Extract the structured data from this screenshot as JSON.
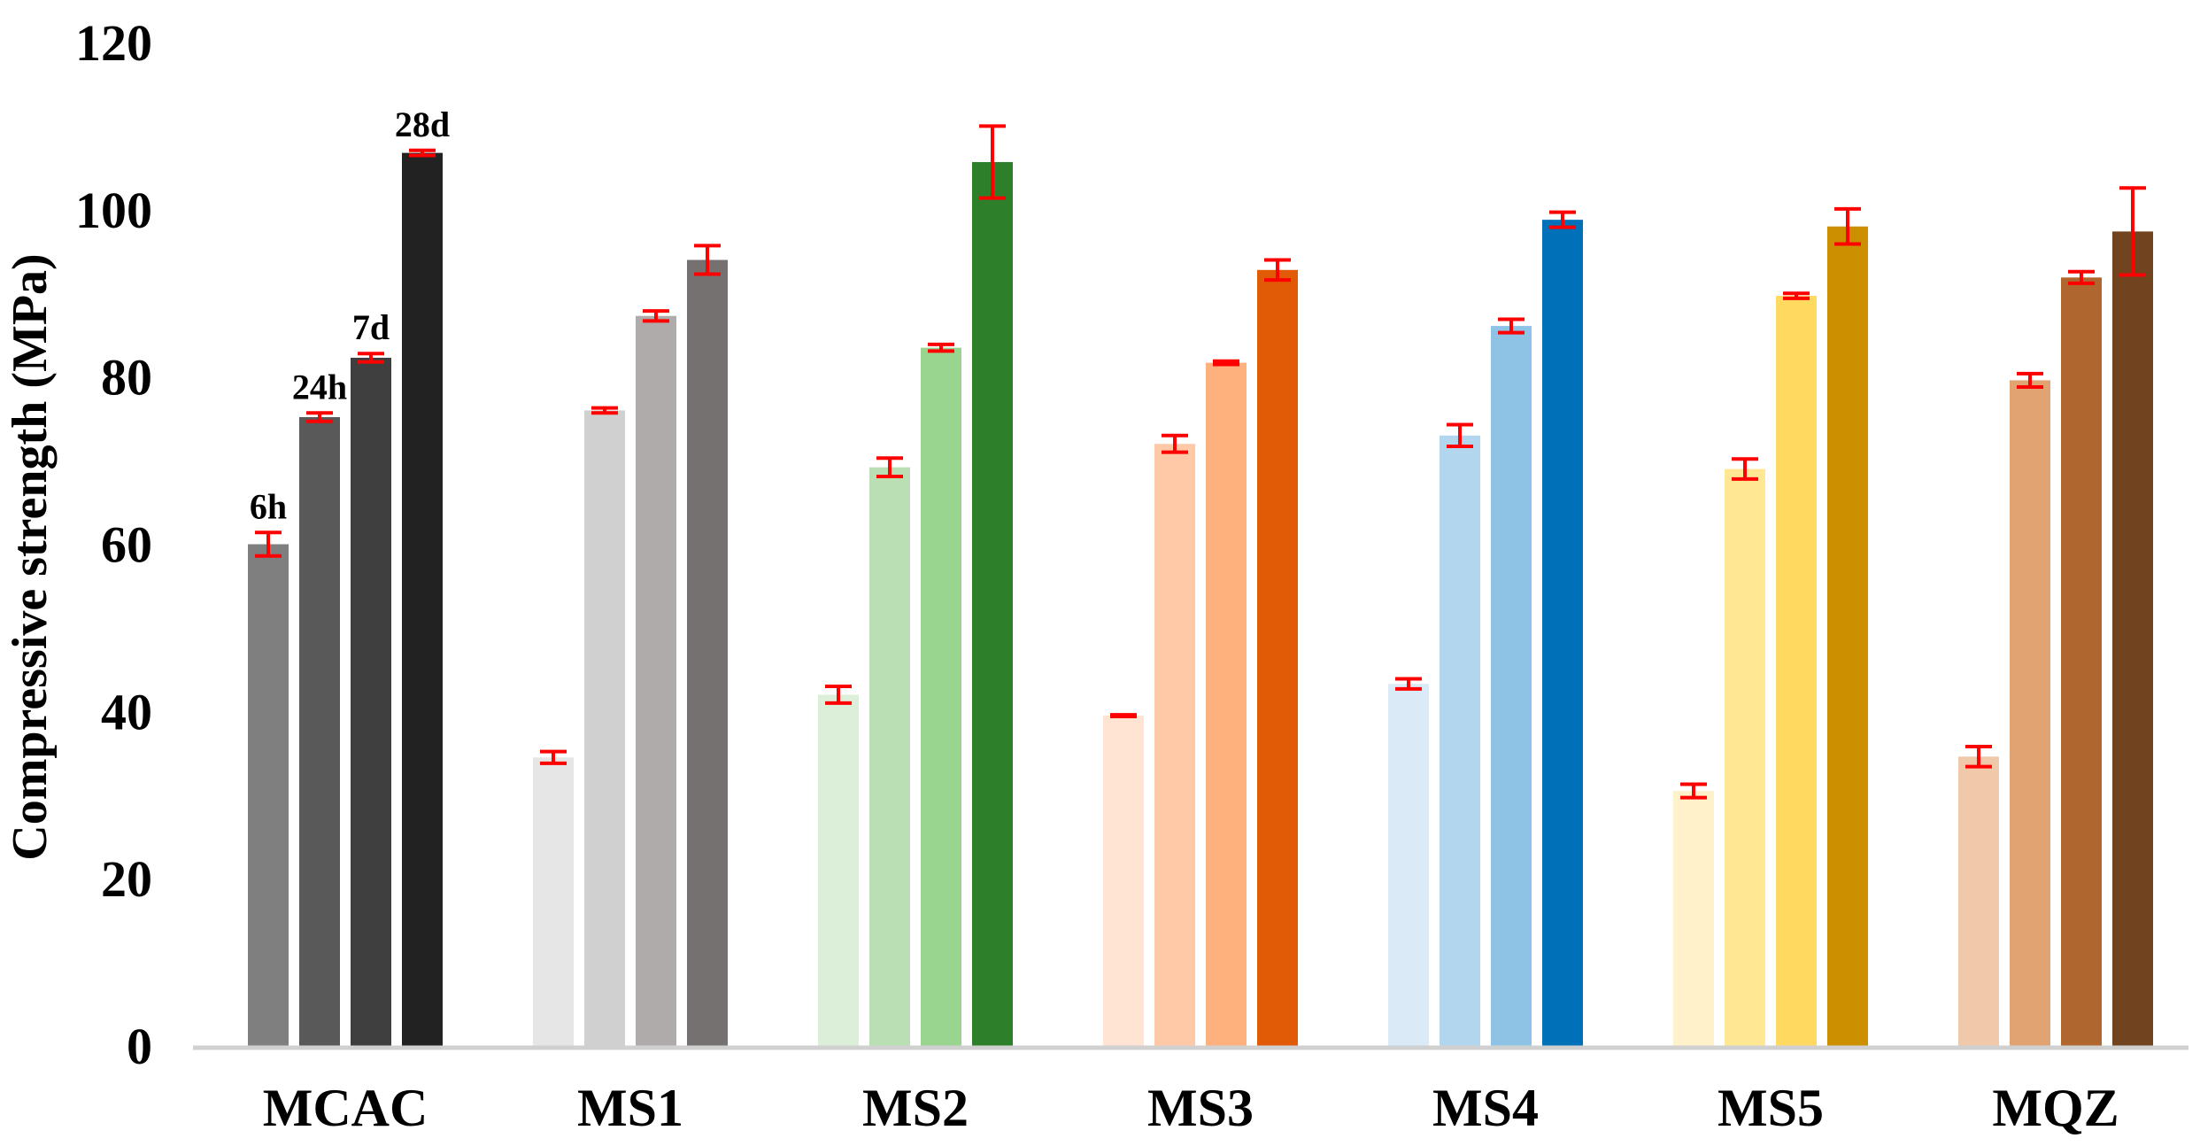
{
  "chart_data": {
    "type": "bar",
    "title": "",
    "xlabel": "",
    "ylabel": "Compressive strength (MPa)",
    "ylim": [
      0,
      120
    ],
    "yticks": [
      0,
      20,
      40,
      60,
      80,
      100,
      120
    ],
    "grid": false,
    "legend": "none",
    "categories": [
      "MCAC",
      "MS1",
      "MS2",
      "MS3",
      "MS4",
      "MS5",
      "MQZ"
    ],
    "series": [
      {
        "name": "6h",
        "values": [
          60,
          34.5,
          42,
          39.5,
          43.3,
          30.5,
          34.6
        ],
        "errors": [
          1.4,
          0.7,
          1.0,
          0.1,
          0.6,
          0.8,
          1.2
        ],
        "colors": [
          "#7f7f7f",
          "#e6e6e6",
          "#dcefd9",
          "#ffe3d3",
          "#daeaf7",
          "#fff1ca",
          "#efc9aa"
        ]
      },
      {
        "name": "24h",
        "values": [
          75.2,
          76,
          69.2,
          72,
          73,
          69,
          79.6
        ],
        "errors": [
          0.5,
          0.3,
          1.1,
          1.0,
          1.3,
          1.2,
          0.8
        ],
        "colors": [
          "#595959",
          "#d0d0d0",
          "#badfb4",
          "#ffc8a7",
          "#b2d6ee",
          "#ffe794",
          "#e2a373"
        ]
      },
      {
        "name": "7d",
        "values": [
          82.3,
          87.3,
          83.5,
          81.7,
          86.1,
          89.7,
          91.9
        ],
        "errors": [
          0.5,
          0.6,
          0.4,
          0.2,
          0.8,
          0.3,
          0.7
        ],
        "colors": [
          "#3f3f3f",
          "#afabab",
          "#9ad58f",
          "#ffb17d",
          "#8ec3e6",
          "#ffd960",
          "#b0672f"
        ]
      },
      {
        "name": "28d",
        "values": [
          106.8,
          94,
          105.7,
          92.8,
          98.8,
          98,
          97.4
        ],
        "errors": [
          0.3,
          1.7,
          4.3,
          1.2,
          0.9,
          2.1,
          5.2
        ],
        "colors": [
          "#222222",
          "#767171",
          "#2e7f2a",
          "#e15a06",
          "#0070b9",
          "#cc8f00",
          "#71431f"
        ]
      }
    ],
    "error_bar_color": "#ff0000",
    "label_category": "MCAC"
  }
}
